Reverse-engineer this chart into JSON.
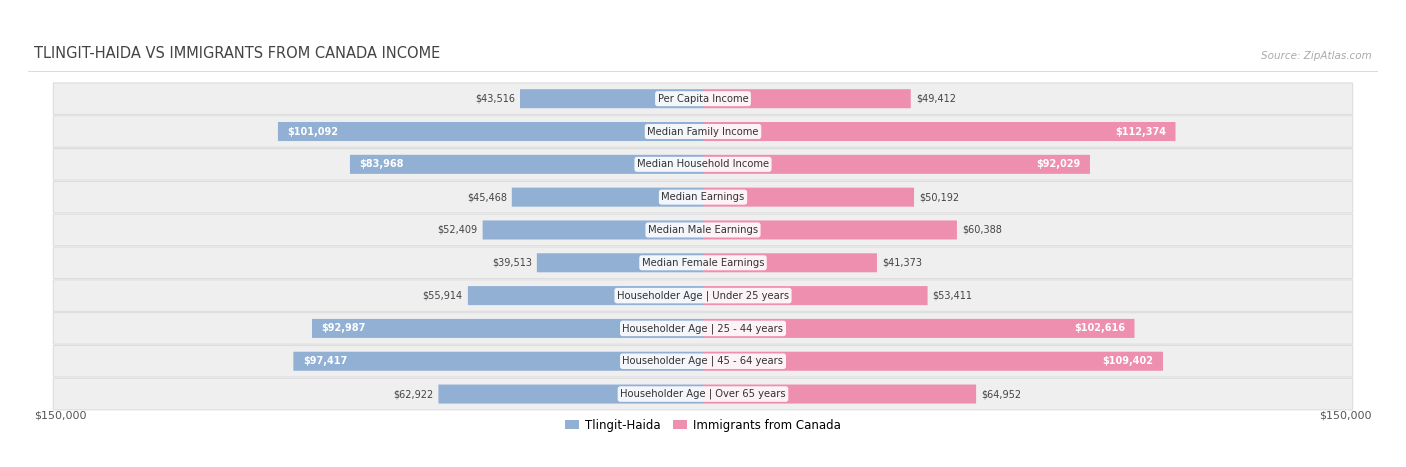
{
  "title": "TLINGIT-HAIDA VS IMMIGRANTS FROM CANADA INCOME",
  "source": "Source: ZipAtlas.com",
  "categories": [
    "Per Capita Income",
    "Median Family Income",
    "Median Household Income",
    "Median Earnings",
    "Median Male Earnings",
    "Median Female Earnings",
    "Householder Age | Under 25 years",
    "Householder Age | 25 - 44 years",
    "Householder Age | 45 - 64 years",
    "Householder Age | Over 65 years"
  ],
  "tlingit_values": [
    43516,
    101092,
    83968,
    45468,
    52409,
    39513,
    55914,
    92987,
    97417,
    62922
  ],
  "canada_values": [
    49412,
    112374,
    92029,
    50192,
    60388,
    41373,
    53411,
    102616,
    109402,
    64952
  ],
  "tlingit_labels": [
    "$43,516",
    "$101,092",
    "$83,968",
    "$45,468",
    "$52,409",
    "$39,513",
    "$55,914",
    "$92,987",
    "$97,417",
    "$62,922"
  ],
  "canada_labels": [
    "$49,412",
    "$112,374",
    "$92,029",
    "$50,192",
    "$60,388",
    "$41,373",
    "$53,411",
    "$102,616",
    "$109,402",
    "$64,952"
  ],
  "tlingit_color": "#92afd4",
  "canada_color": "#ef8faf",
  "max_value": 150000,
  "row_bg_color": "#efefef",
  "row_border_color": "#dddddd",
  "label_legend_tlingit": "Tlingit-Haida",
  "label_legend_canada": "Immigrants from Canada",
  "x_axis_label_left": "$150,000",
  "x_axis_label_right": "$150,000",
  "inside_threshold": 0.55,
  "tlingit_inside": [
    false,
    true,
    true,
    false,
    false,
    false,
    false,
    true,
    true,
    false
  ],
  "canada_inside": [
    false,
    true,
    true,
    false,
    false,
    false,
    false,
    true,
    true,
    false
  ]
}
